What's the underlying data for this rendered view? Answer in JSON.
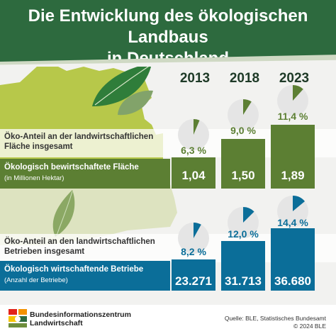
{
  "title": {
    "line1": "Die Entwicklung des ökologischen Landbaus",
    "line2": "in Deutschland"
  },
  "years": [
    "2013",
    "2018",
    "2023"
  ],
  "area_section": {
    "share_label_line1": "Öko-Anteil an der landwirtschaftlichen",
    "share_label_line2": "Fläche insgesamt",
    "band_title": "Ökologisch bewirtschaftete Fläche",
    "band_subtitle": "(in Millionen Hektar)",
    "shares": [
      "6,3 %",
      "9,0 %",
      "11,4 %"
    ],
    "share_values": [
      6.3,
      9.0,
      11.4
    ],
    "values": [
      "1,04",
      "1,50",
      "1,89"
    ]
  },
  "farm_section": {
    "share_label_line1": "Öko-Anteil an den landwirtschaftlichen",
    "share_label_line2": "Betrieben insgesamt",
    "band_title": "Ökologisch wirtschaftende Betriebe",
    "band_subtitle": "(Anzahl der Betriebe)",
    "shares": [
      "8,2 %",
      "12,0 %",
      "14,4 %"
    ],
    "share_values": [
      8.2,
      12.0,
      14.4
    ],
    "values": [
      "23.271",
      "31.713",
      "36.680"
    ]
  },
  "logo": {
    "line1": "Bundesinformationszentrum",
    "line2": "Landwirtschaft"
  },
  "source": {
    "line1": "Quelle:  BLE, Statistisches Bundesamt",
    "line2": "© 2024 BLE"
  },
  "colors": {
    "header_green": "#2d6a3e",
    "area_green": "#5c7f33",
    "farm_blue": "#0b6e99",
    "map_green": "#b7c84a",
    "pie_bg": "#e5e5e5"
  }
}
